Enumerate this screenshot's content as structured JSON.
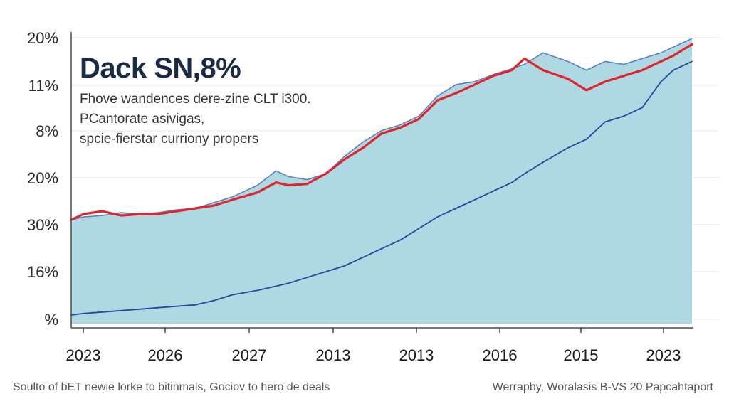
{
  "chart_data": {
    "type": "area",
    "title": "Dack SN,8%",
    "subtitle": [
      "Fhove wandences dere-zine CLT i300.",
      "PCantorate asivigas,",
      "spcie-fierstar curriony propers"
    ],
    "y_tick_labels": [
      "20%",
      "11%",
      "8%",
      "20%",
      "30%",
      "16%",
      "%"
    ],
    "x_tick_labels": [
      "2023",
      "2026",
      "2027",
      "2013",
      "2013",
      "2016",
      "2015",
      "2023"
    ],
    "ylim": [
      0,
      100
    ],
    "grid": true,
    "x": [
      0,
      2,
      5,
      8,
      11,
      14,
      17,
      20,
      23,
      26,
      30,
      33,
      35,
      38,
      41,
      44,
      47,
      50,
      53,
      56,
      59,
      62,
      65,
      68,
      71,
      73,
      76,
      80,
      83,
      86,
      89,
      92,
      95,
      97,
      100
    ],
    "series": [
      {
        "name": "",
        "role": "area",
        "color": "#aed9e3",
        "values": [
          36,
          37,
          37.5,
          38.5,
          38,
          38.5,
          39.5,
          40,
          42,
          44,
          48,
          53,
          51,
          50,
          52,
          58,
          63,
          67,
          69,
          72,
          79,
          83,
          84,
          86.5,
          88.5,
          90,
          94,
          91,
          88,
          91,
          90,
          92,
          94,
          96,
          99
        ]
      },
      {
        "name": "",
        "role": "line",
        "color": "#e0242b",
        "values": [
          36,
          38,
          39,
          37.5,
          38,
          38,
          39,
          40,
          41,
          43,
          45.5,
          49,
          48,
          48.5,
          52,
          57,
          61,
          66,
          68,
          71,
          77.5,
          80,
          83,
          86,
          88,
          92,
          88,
          85,
          81,
          84,
          86,
          88,
          91,
          93,
          97
        ]
      },
      {
        "name": "",
        "role": "line",
        "color": "#2646a0",
        "values": [
          3,
          3.5,
          4,
          4.5,
          5,
          5.5,
          6,
          6.5,
          8,
          10,
          11.5,
          13,
          14,
          16,
          18,
          20,
          23,
          26,
          29,
          33,
          37,
          40,
          43,
          46,
          49,
          52,
          56,
          61,
          64,
          70,
          72,
          75,
          84,
          88,
          91
        ]
      }
    ]
  },
  "footer": {
    "left": "Soulto of bET newie lorke to bitinmals, Gociov to hero de deals",
    "right": "Werrapby, Woralasis B-VS 20 Papcahtaport"
  },
  "colors": {
    "area_fill": "#aed9e3",
    "area_edge": "#5b7fbf",
    "red_line": "#e0242b",
    "blue_line": "#2646a0",
    "grid": "#e3e6ea"
  }
}
